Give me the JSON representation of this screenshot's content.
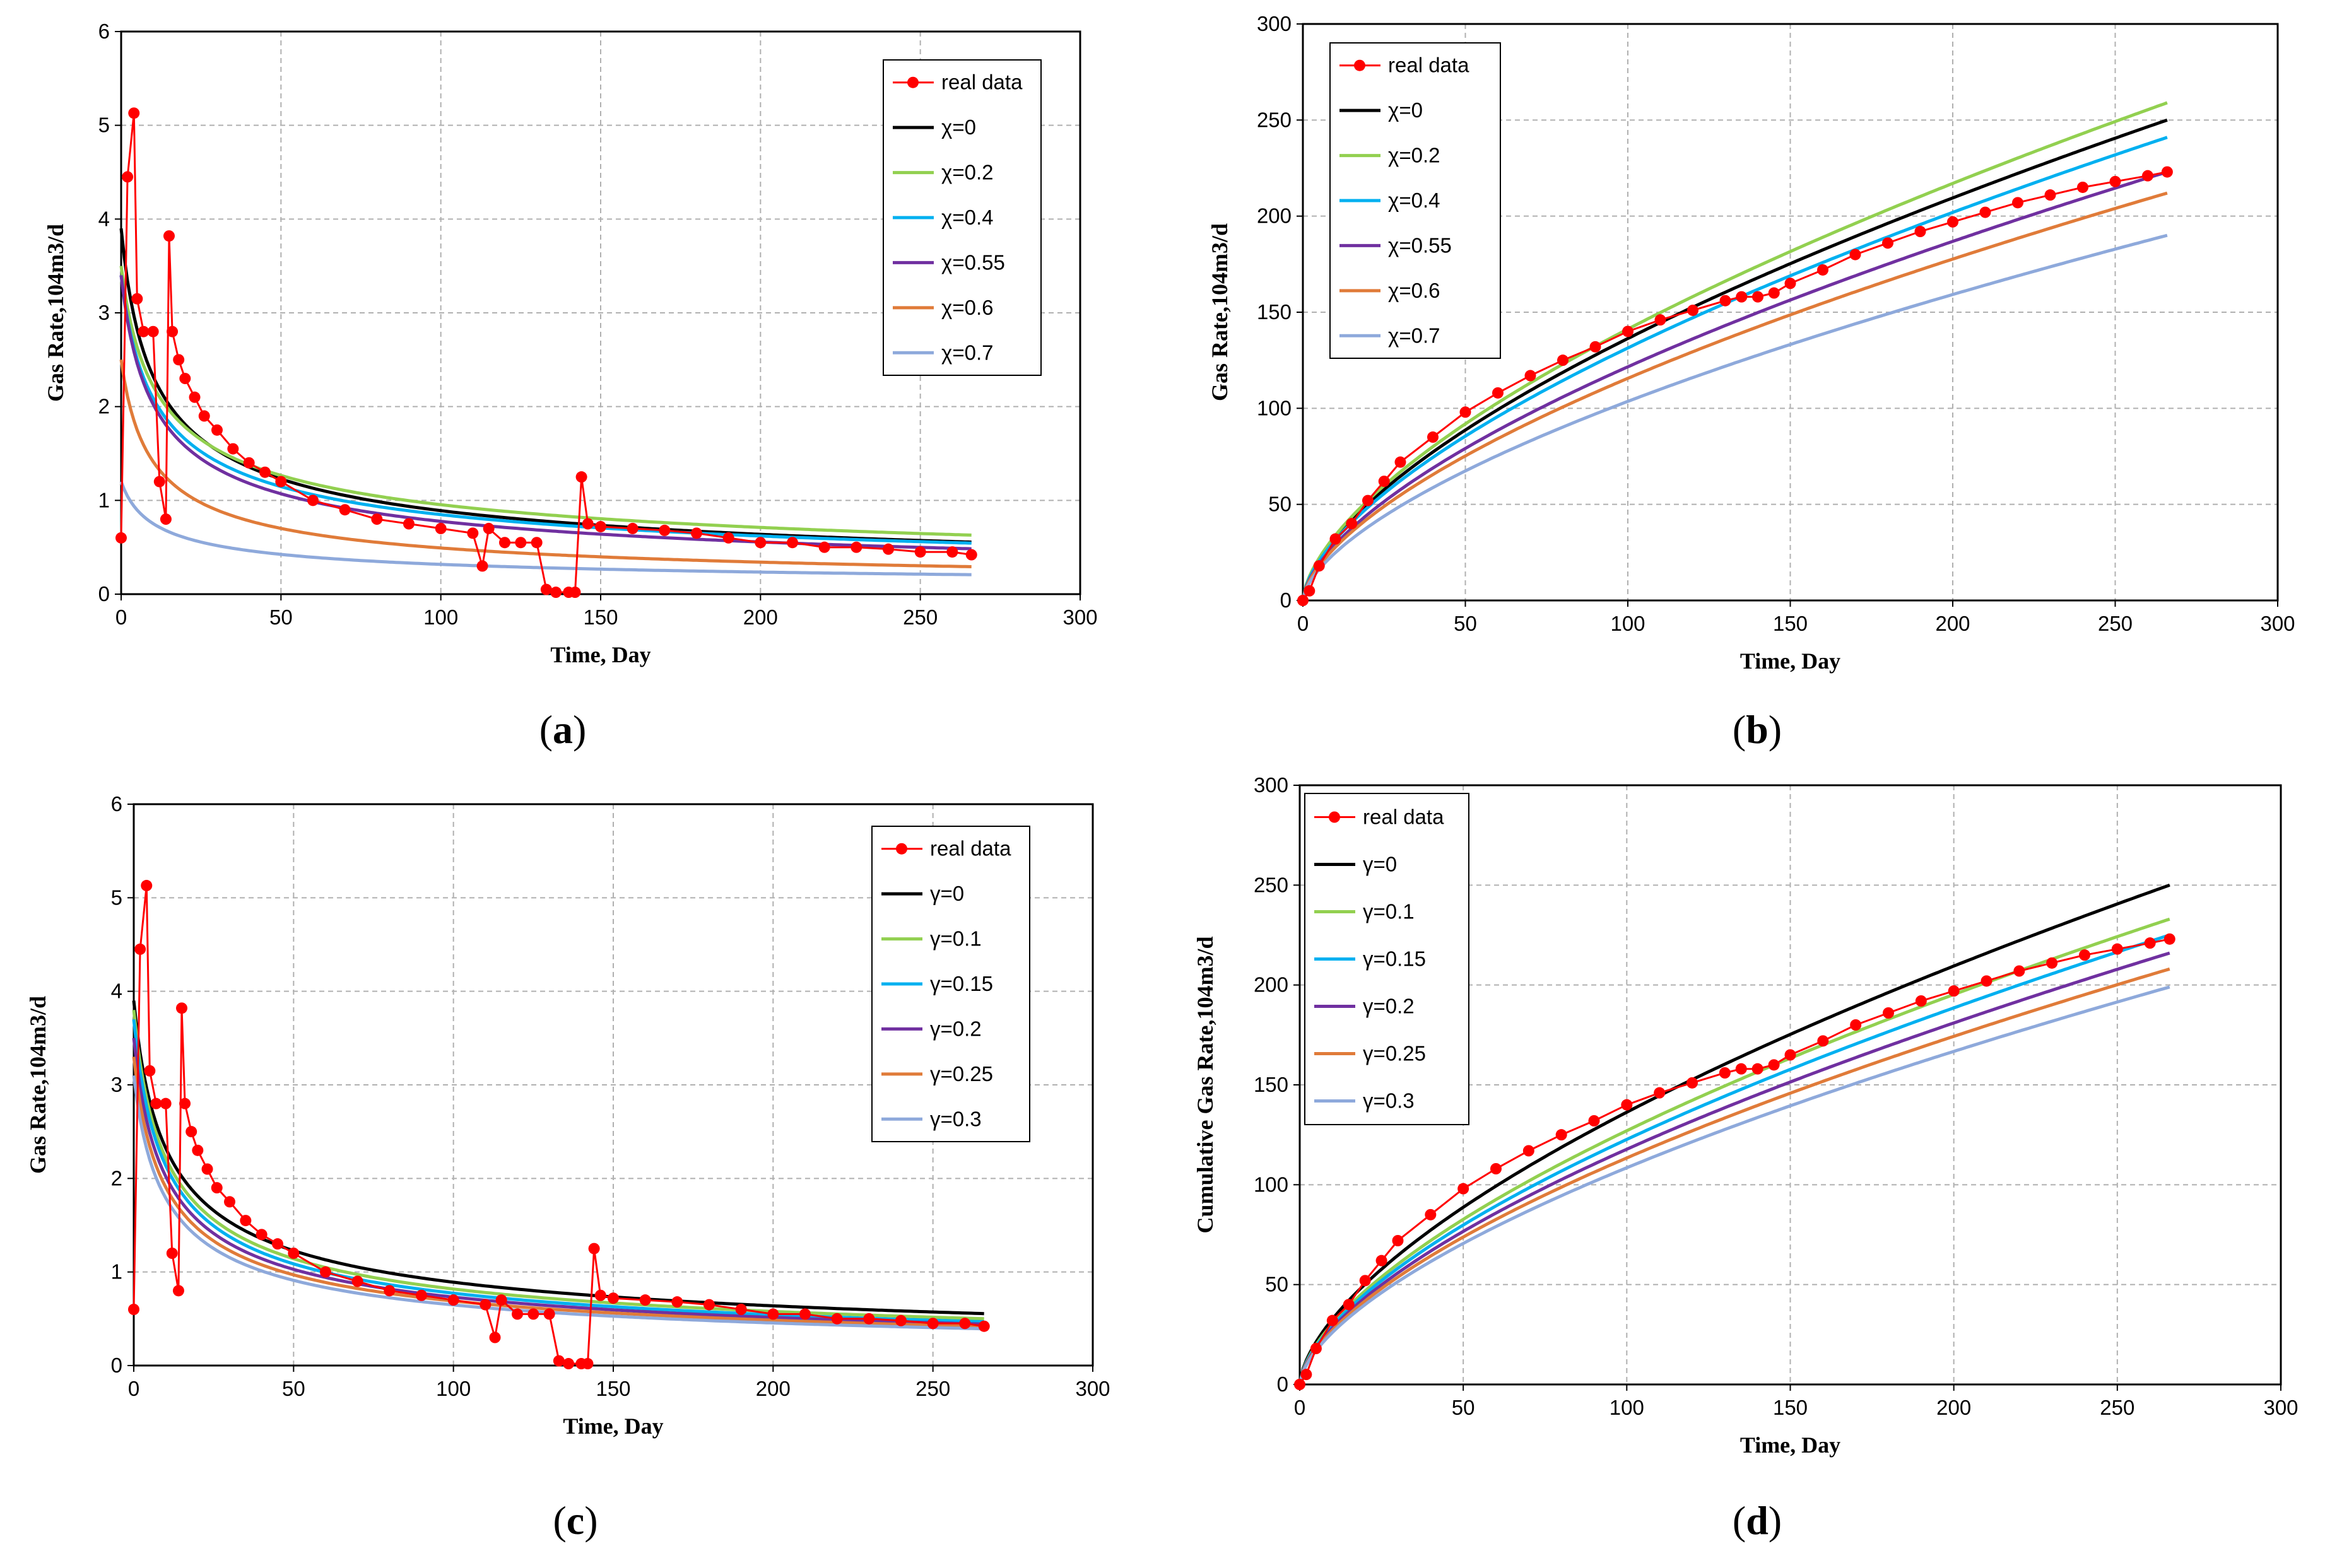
{
  "chart_data": [
    {
      "panel": "a",
      "type": "line",
      "xlabel": "Time, Day",
      "ylabel": "Gas Rate,104m3/d",
      "xlim": [
        0,
        300
      ],
      "ylim": [
        0,
        6
      ],
      "xticks": [
        0,
        50,
        100,
        150,
        200,
        250,
        300
      ],
      "yticks": [
        0,
        1,
        2,
        3,
        4,
        5,
        6
      ],
      "legend_position": "top-right",
      "real_data_label": "real data",
      "series": [
        {
          "name": "χ=0",
          "color": "#000000",
          "q0": 3.9,
          "n": 0.5,
          "c": 0
        },
        {
          "name": "χ=0.2",
          "color": "#92D050",
          "q0": 3.5,
          "n": 0.44,
          "c": 0
        },
        {
          "name": "χ=0.4",
          "color": "#00B0F0",
          "q0": 3.4,
          "n": 0.47,
          "c": 0
        },
        {
          "name": "χ=0.55",
          "color": "#7030A0",
          "q0": 3.4,
          "n": 0.5,
          "c": 0
        },
        {
          "name": "χ=0.6",
          "color": "#E07B39",
          "q0": 2.5,
          "n": 0.55,
          "c": 0
        },
        {
          "name": "χ=0.7",
          "color": "#8EA9DB",
          "q0": 1.2,
          "n": 0.45,
          "c": 0
        }
      ]
    },
    {
      "panel": "b",
      "type": "line",
      "xlabel": "Time, Day",
      "ylabel": "Gas Rate,104m3/d",
      "xlim": [
        0,
        300
      ],
      "ylim": [
        0,
        300
      ],
      "xticks": [
        0,
        50,
        100,
        150,
        200,
        250,
        300
      ],
      "yticks": [
        0,
        50,
        100,
        150,
        200,
        250,
        300
      ],
      "legend_position": "top-left",
      "real_data_label": "real data",
      "series": [
        {
          "name": "χ=0",
          "color": "#000000",
          "end": 250
        },
        {
          "name": "χ=0.2",
          "color": "#92D050",
          "end": 259
        },
        {
          "name": "χ=0.4",
          "color": "#00B0F0",
          "end": 241
        },
        {
          "name": "χ=0.55",
          "color": "#7030A0",
          "end": 223
        },
        {
          "name": "χ=0.6",
          "color": "#E07B39",
          "end": 212
        },
        {
          "name": "χ=0.7",
          "color": "#8EA9DB",
          "end": 190
        }
      ]
    },
    {
      "panel": "c",
      "type": "line",
      "xlabel": "Time, Day",
      "ylabel": "Gas Rate,104m3/d",
      "xlim": [
        0,
        300
      ],
      "ylim": [
        0,
        6
      ],
      "xticks": [
        0,
        50,
        100,
        150,
        200,
        250,
        300
      ],
      "yticks": [
        0,
        1,
        2,
        3,
        4,
        5,
        6
      ],
      "legend_position": "top-right",
      "real_data_label": "real data",
      "series": [
        {
          "name": "γ=0",
          "color": "#000000",
          "q0": 3.9,
          "n": 0.5,
          "c": 0
        },
        {
          "name": "γ=0.1",
          "color": "#92D050",
          "q0": 3.8,
          "n": 0.52,
          "c": 0
        },
        {
          "name": "γ=0.15",
          "color": "#00B0F0",
          "q0": 3.7,
          "n": 0.53,
          "c": 0
        },
        {
          "name": "γ=0.2",
          "color": "#7030A0",
          "q0": 3.5,
          "n": 0.53,
          "c": 0
        },
        {
          "name": "γ=0.25",
          "color": "#E07B39",
          "q0": 3.3,
          "n": 0.53,
          "c": 0
        },
        {
          "name": "γ=0.3",
          "color": "#8EA9DB",
          "q0": 3.1,
          "n": 0.53,
          "c": 0
        }
      ]
    },
    {
      "panel": "d",
      "type": "line",
      "xlabel": "Time, Day",
      "ylabel": "Cumulative  Gas Rate,104m3/d",
      "xlim": [
        0,
        300
      ],
      "ylim": [
        0,
        300
      ],
      "xticks": [
        0,
        50,
        100,
        150,
        200,
        250,
        300
      ],
      "yticks": [
        0,
        50,
        100,
        150,
        200,
        250,
        300
      ],
      "legend_position": "top-left",
      "real_data_label": "real data",
      "series": [
        {
          "name": "γ=0",
          "color": "#000000",
          "end": 250
        },
        {
          "name": "γ=0.1",
          "color": "#92D050",
          "end": 233
        },
        {
          "name": "γ=0.15",
          "color": "#00B0F0",
          "end": 225
        },
        {
          "name": "γ=0.2",
          "color": "#7030A0",
          "end": 216
        },
        {
          "name": "γ=0.25",
          "color": "#E07B39",
          "end": 208
        },
        {
          "name": "γ=0.3",
          "color": "#8EA9DB",
          "end": 199
        }
      ]
    }
  ],
  "real_data": {
    "rate_points": [
      [
        0,
        0.6
      ],
      [
        2,
        4.45
      ],
      [
        4,
        5.13
      ],
      [
        5,
        3.15
      ],
      [
        7,
        2.8
      ],
      [
        10,
        2.8
      ],
      [
        12,
        1.2
      ],
      [
        14,
        0.8
      ],
      [
        15,
        3.82
      ],
      [
        16,
        2.8
      ],
      [
        18,
        2.5
      ],
      [
        20,
        2.3
      ],
      [
        23,
        2.1
      ],
      [
        26,
        1.9
      ],
      [
        30,
        1.75
      ],
      [
        35,
        1.55
      ],
      [
        40,
        1.4
      ],
      [
        45,
        1.3
      ],
      [
        50,
        1.2
      ],
      [
        60,
        1.0
      ],
      [
        70,
        0.9
      ],
      [
        80,
        0.8
      ],
      [
        90,
        0.75
      ],
      [
        100,
        0.7
      ],
      [
        110,
        0.65
      ],
      [
        113,
        0.3
      ],
      [
        115,
        0.7
      ],
      [
        120,
        0.55
      ],
      [
        125,
        0.55
      ],
      [
        130,
        0.55
      ],
      [
        133,
        0.05
      ],
      [
        136,
        0.02
      ],
      [
        140,
        0.02
      ],
      [
        142,
        0.02
      ],
      [
        144,
        1.25
      ],
      [
        146,
        0.75
      ],
      [
        150,
        0.72
      ],
      [
        160,
        0.7
      ],
      [
        170,
        0.68
      ],
      [
        180,
        0.65
      ],
      [
        190,
        0.6
      ],
      [
        200,
        0.55
      ],
      [
        210,
        0.55
      ],
      [
        220,
        0.5
      ],
      [
        230,
        0.5
      ],
      [
        240,
        0.48
      ],
      [
        250,
        0.45
      ],
      [
        260,
        0.45
      ],
      [
        266,
        0.42
      ]
    ],
    "cumulative_points": [
      [
        0,
        0
      ],
      [
        2,
        5
      ],
      [
        5,
        18
      ],
      [
        10,
        32
      ],
      [
        15,
        40
      ],
      [
        20,
        52
      ],
      [
        25,
        62
      ],
      [
        30,
        72
      ],
      [
        40,
        85
      ],
      [
        50,
        98
      ],
      [
        60,
        108
      ],
      [
        70,
        117
      ],
      [
        80,
        125
      ],
      [
        90,
        132
      ],
      [
        100,
        140
      ],
      [
        110,
        146
      ],
      [
        120,
        151
      ],
      [
        130,
        156
      ],
      [
        135,
        158
      ],
      [
        140,
        158
      ],
      [
        145,
        160
      ],
      [
        150,
        165
      ],
      [
        160,
        172
      ],
      [
        170,
        180
      ],
      [
        180,
        186
      ],
      [
        190,
        192
      ],
      [
        200,
        197
      ],
      [
        210,
        202
      ],
      [
        220,
        207
      ],
      [
        230,
        211
      ],
      [
        240,
        215
      ],
      [
        250,
        218
      ],
      [
        260,
        221
      ],
      [
        266,
        223
      ]
    ],
    "color": "#FF0000"
  },
  "panel_labels": [
    "a",
    "b",
    "c",
    "d"
  ]
}
